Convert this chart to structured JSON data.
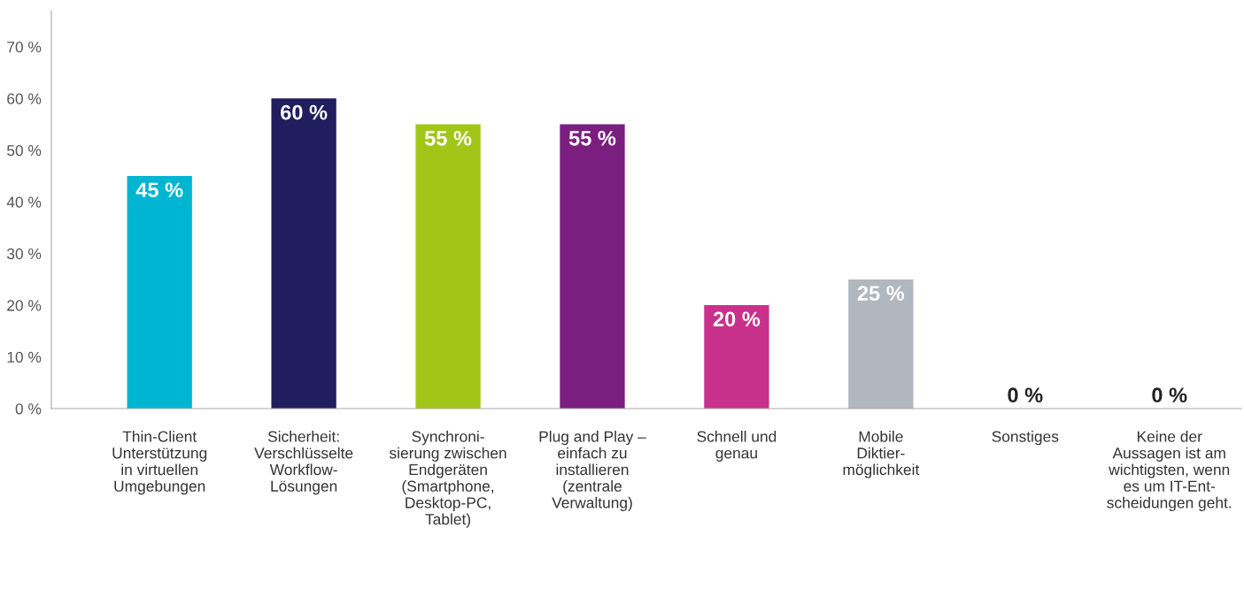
{
  "chart_data": {
    "type": "bar",
    "categories": [
      "Thin-Client\nUnterstützung\nin virtuellen\nUmgebungen",
      "Sicherheit:\nVerschlüsselte\nWorkflow-\nLösungen",
      "Synchroni-\nsierung zwischen\nEndgeräten\n(Smartphone,\nDesktop-PC,\nTablet)",
      "Plug and Play –\neinfach zu\ninstallieren\n(zentrale\nVerwaltung)",
      "Schnell und\ngenau",
      "Mobile\nDiktier-\nmöglichkeit",
      "Sonstiges",
      "Keine der\nAussagen ist am\nwichtigsten, wenn\nes um IT-Ent-\nscheidungen geht."
    ],
    "values": [
      45,
      60,
      55,
      55,
      20,
      25,
      0,
      0
    ],
    "value_labels": [
      "45 %",
      "60 %",
      "55 %",
      "55 %",
      "20 %",
      "25 %",
      "0 %",
      "0 %"
    ],
    "colors": [
      "#00b5d1",
      "#201e5e",
      "#a2c617",
      "#7a1f80",
      "#c8318b",
      "#b0b7bf",
      "#b0b7bf",
      "#b0b7bf"
    ],
    "ylim": [
      0,
      77
    ],
    "yticks": [
      {
        "value": 0,
        "label": "0 %"
      },
      {
        "value": 10,
        "label": "10 %"
      },
      {
        "value": 20,
        "label": "20 %"
      },
      {
        "value": 30,
        "label": "30 %"
      },
      {
        "value": 40,
        "label": "40 %"
      },
      {
        "value": 50,
        "label": "50 %"
      },
      {
        "value": 60,
        "label": "60 %"
      },
      {
        "value": 70,
        "label": "70 %"
      }
    ],
    "grid": false
  }
}
